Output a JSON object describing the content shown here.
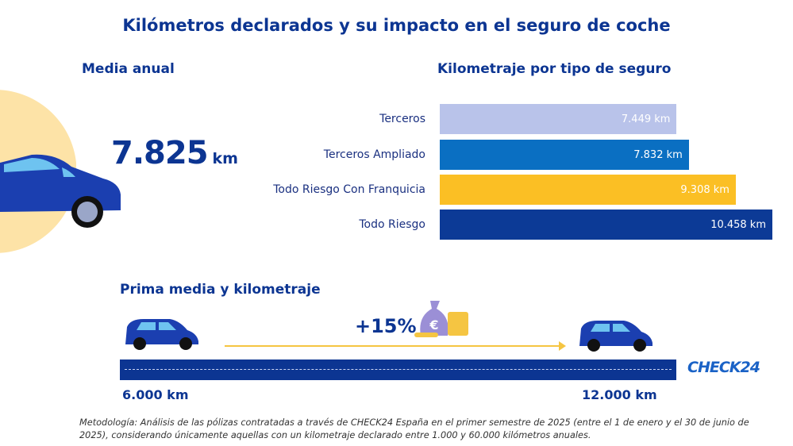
{
  "title": "Kilómetros declarados y su impacto en el seguro de coche",
  "annual": {
    "heading": "Media anual",
    "value": "7.825",
    "unit": "km"
  },
  "colors": {
    "primary": "#0c3592",
    "circle": "#fde3a7",
    "accent": "#f5c542"
  },
  "chart_data": {
    "type": "bar",
    "orientation": "horizontal",
    "title": "Kilometraje por tipo de seguro",
    "categories": [
      "Terceros",
      "Terceros Ampliado",
      "Todo Riesgo Con Franquicia",
      "Todo Riesgo"
    ],
    "values": [
      7449,
      7832,
      9308,
      10458
    ],
    "data_labels": [
      "7.449 km",
      "7.832 km",
      "9.308 km",
      "10.458 km"
    ],
    "colors": [
      "#b9c3ea",
      "#0a6fc2",
      "#fbbf24",
      "#0c3a96"
    ],
    "xlim": [
      0,
      10458
    ],
    "grid": false
  },
  "premium": {
    "heading": "Prima media y kilometraje",
    "increase": "+15%",
    "from": "6.000 km",
    "to": "12.000 km",
    "icons": [
      "car-icon",
      "money-bag-icon",
      "coins-icon",
      "car-icon"
    ]
  },
  "logo": "CHECK24",
  "methodology": "Metodología: Análisis de las pólizas contratadas a través de CHECK24 España en el primer semestre de 2025 (entre el 1 de enero y el 30 de junio de 2025), considerando únicamente aquellas con un kilometraje declarado entre 1.000 y 60.000 kilómetros anuales."
}
